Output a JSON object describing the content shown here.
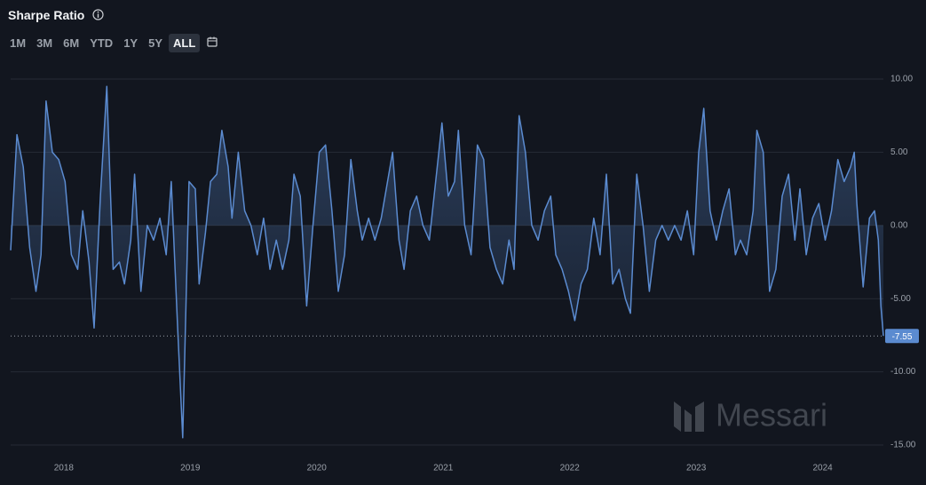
{
  "chart_data": {
    "type": "line",
    "title": "Sharpe Ratio",
    "watermark": "Messari",
    "ranges": [
      "1M",
      "3M",
      "6M",
      "YTD",
      "1Y",
      "5Y",
      "ALL"
    ],
    "active_range": 6,
    "color": "#5b8bd0",
    "grid": true,
    "x": [
      2017.58,
      2017.63,
      2017.68,
      2017.73,
      2017.78,
      2017.82,
      2017.86,
      2017.91,
      2017.96,
      2018.01,
      2018.06,
      2018.11,
      2018.15,
      2018.2,
      2018.24,
      2018.29,
      2018.34,
      2018.39,
      2018.44,
      2018.48,
      2018.53,
      2018.56,
      2018.61,
      2018.66,
      2018.71,
      2018.76,
      2018.81,
      2018.85,
      2018.9,
      2018.94,
      2018.99,
      2019.04,
      2019.07,
      2019.12,
      2019.16,
      2019.21,
      2019.25,
      2019.3,
      2019.33,
      2019.38,
      2019.43,
      2019.48,
      2019.53,
      2019.58,
      2019.63,
      2019.68,
      2019.73,
      2019.78,
      2019.82,
      2019.87,
      2019.92,
      2019.97,
      2020.02,
      2020.07,
      2020.12,
      2020.17,
      2020.22,
      2020.27,
      2020.32,
      2020.36,
      2020.41,
      2020.46,
      2020.51,
      2020.56,
      2020.6,
      2020.65,
      2020.69,
      2020.74,
      2020.79,
      2020.84,
      2020.89,
      2020.94,
      2020.99,
      2021.04,
      2021.09,
      2021.12,
      2021.17,
      2021.22,
      2021.27,
      2021.32,
      2021.37,
      2021.42,
      2021.47,
      2021.52,
      2021.56,
      2021.6,
      2021.65,
      2021.7,
      2021.75,
      2021.8,
      2021.85,
      2021.89,
      2021.94,
      2021.99,
      2022.04,
      2022.09,
      2022.14,
      2022.19,
      2022.24,
      2022.29,
      2022.34,
      2022.39,
      2022.44,
      2022.48,
      2022.53,
      2022.58,
      2022.63,
      2022.68,
      2022.73,
      2022.78,
      2022.83,
      2022.88,
      2022.93,
      2022.98,
      2023.02,
      2023.06,
      2023.11,
      2023.16,
      2023.21,
      2023.26,
      2023.31,
      2023.35,
      2023.4,
      2023.45,
      2023.48,
      2023.53,
      2023.58,
      2023.63,
      2023.68,
      2023.73,
      2023.78,
      2023.82,
      2023.87,
      2023.92,
      2023.97,
      2024.02,
      2024.07,
      2024.12,
      2024.17,
      2024.22,
      2024.25,
      2024.27,
      2024.32,
      2024.37,
      2024.41,
      2024.44,
      2024.46,
      2024.48
    ],
    "values": [
      -1.7,
      6.2,
      4,
      -1.5,
      -4.5,
      -2,
      8.5,
      5,
      4.5,
      3,
      -2,
      -3,
      1,
      -2.5,
      -7,
      2,
      9.5,
      -3,
      -2.5,
      -4,
      -1,
      3.5,
      -4.5,
      0,
      -1,
      0.5,
      -2,
      3,
      -7,
      -14.5,
      3,
      2.5,
      -4,
      -0.5,
      3,
      3.5,
      6.5,
      4,
      0.5,
      5,
      1,
      0,
      -2,
      0.5,
      -3,
      -1,
      -3,
      -1,
      3.5,
      2,
      -5.5,
      0,
      5,
      5.5,
      1,
      -4.5,
      -2,
      4.5,
      1,
      -1,
      0.5,
      -1,
      0.5,
      3,
      5,
      -1,
      -3,
      1,
      2,
      0,
      -1,
      3,
      7,
      2,
      3,
      6.5,
      0,
      -2,
      5.5,
      4.5,
      -1.5,
      -3,
      -4,
      -1,
      -3,
      7.5,
      5,
      0,
      -1,
      1,
      2,
      -2,
      -3,
      -4.5,
      -6.5,
      -4,
      -3,
      0.5,
      -2,
      3.5,
      -4,
      -3,
      -5,
      -6,
      3.5,
      0,
      -4.5,
      -1,
      0,
      -1,
      0,
      -1,
      1,
      -2,
      5,
      8,
      1,
      -1,
      1,
      2.5,
      -2,
      -1,
      -2,
      1,
      6.5,
      5,
      -4.5,
      -3,
      2,
      3.5,
      -1,
      2.5,
      -2,
      0.5,
      1.5,
      -1,
      1,
      4.5,
      3,
      4,
      5,
      1.5,
      -4.2,
      0.5,
      1,
      -1,
      -5.5,
      -7.55
    ],
    "value_labels": [
      null,
      null,
      null,
      null,
      null,
      null,
      null,
      null,
      null,
      null,
      null,
      null,
      null,
      null,
      null,
      null,
      null,
      null,
      null,
      null,
      null,
      null,
      null,
      null,
      null,
      null,
      null,
      null,
      null,
      null,
      null,
      null,
      null,
      null,
      null,
      null,
      null,
      null,
      null,
      null,
      null,
      null,
      null,
      null,
      null,
      null,
      null,
      null,
      null,
      null,
      null,
      null,
      null,
      null,
      null,
      null,
      null,
      null,
      null,
      null,
      null,
      null,
      null,
      null,
      null,
      null,
      null,
      null,
      null,
      null,
      null,
      null,
      null,
      null,
      null,
      null,
      null,
      null,
      null,
      null,
      null,
      null,
      null,
      null,
      null,
      null,
      null,
      null,
      null,
      null,
      null,
      null,
      null,
      null,
      null,
      null,
      null,
      null,
      null,
      null,
      null,
      null,
      null,
      null,
      null,
      null,
      null,
      null,
      null,
      null,
      null,
      null,
      null,
      null,
      null,
      null,
      null,
      null,
      null,
      null,
      null,
      null,
      null,
      null,
      null,
      null,
      null,
      null,
      null,
      null,
      null,
      null,
      null,
      null,
      null,
      null,
      null,
      null,
      null,
      null,
      null,
      null,
      null,
      null,
      null,
      null,
      null,
      "-7.55"
    ],
    "xlim": [
      2017.58,
      2024.48
    ],
    "xticks": [
      2018,
      2019,
      2020,
      2021,
      2022,
      2023,
      2024
    ],
    "ylim": [
      -15,
      10
    ],
    "yticks": [
      {
        "value": 10,
        "label": "10.00"
      },
      {
        "value": 5,
        "label": "5.00"
      },
      {
        "value": 0,
        "label": "0.00"
      },
      {
        "value": -5,
        "label": "-5.00"
      },
      {
        "value": -10,
        "label": "-10.00"
      },
      {
        "value": -15,
        "label": "-15.00"
      }
    ]
  }
}
